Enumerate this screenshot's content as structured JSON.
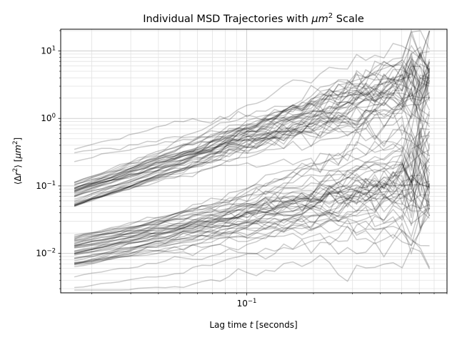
{
  "chart_data": {
    "type": "line",
    "title": "Individual MSD Trajectories with μm² Scale",
    "title_parts": {
      "prefix": "Individual MSD Trajectories with ",
      "italic": "μm",
      "sup": "2",
      "suffix": " Scale"
    },
    "xlabel": "Lag time t [seconds]",
    "xlabel_parts": {
      "prefix": "Lag time ",
      "italic": "t",
      "suffix": " [seconds]"
    },
    "ylabel": "⟨Δr²⟩ [μm²]",
    "ylabel_parts": {
      "open": "⟨Δ",
      "italic": "r",
      "sup1": "2",
      "mid": "⟩ [",
      "italic2": "μm",
      "sup2": "2",
      "close": "]"
    },
    "xscale": "log",
    "yscale": "log",
    "xlim": [
      0.0145,
      0.8
    ],
    "ylim": [
      0.0026,
      21
    ],
    "grid": "both-major-minor",
    "x_ticks": [
      {
        "value": 0.1,
        "base": "10",
        "exp": "−1"
      }
    ],
    "y_ticks": [
      {
        "value": 0.01,
        "base": "10",
        "exp": "−2"
      },
      {
        "value": 0.1,
        "base": "10",
        "exp": "−1"
      },
      {
        "value": 1,
        "base": "10",
        "exp": "0"
      },
      {
        "value": 10,
        "base": "10",
        "exp": "1"
      }
    ],
    "line_color": "#000000",
    "line_alpha": 0.2,
    "t_start": 0.0167,
    "t_end": 0.667,
    "series_count": 90,
    "series_note": "Each trajectory: power-law MSD = a·(t/0.0167)^b with random fluctuations growing at long lag times."
  }
}
